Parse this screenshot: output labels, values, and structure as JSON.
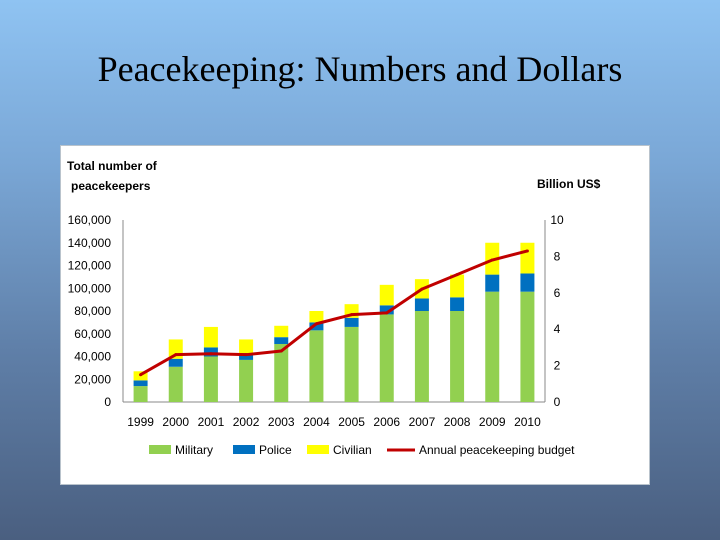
{
  "slide": {
    "title": "Peacekeeping: Numbers and Dollars"
  },
  "colors": {
    "military": "#92d050",
    "police": "#0070c0",
    "civilian": "#ffff00",
    "budget": "#c00000"
  },
  "chart_data": {
    "type": "bar",
    "stacked": true,
    "categories": [
      "1999",
      "2000",
      "2001",
      "2002",
      "2003",
      "2004",
      "2005",
      "2006",
      "2007",
      "2008",
      "2009",
      "2010"
    ],
    "series": [
      {
        "name": "Military",
        "values": [
          14000,
          31000,
          40000,
          37000,
          51000,
          63000,
          66000,
          77000,
          80000,
          80000,
          97000,
          97000
        ]
      },
      {
        "name": "Police",
        "values": [
          5000,
          7000,
          8000,
          6000,
          6000,
          7000,
          8000,
          8000,
          11000,
          12000,
          15000,
          16000
        ]
      },
      {
        "name": "Civilian",
        "values": [
          8000,
          17000,
          18000,
          12000,
          10000,
          10000,
          12000,
          18000,
          17000,
          20000,
          28000,
          27000
        ]
      }
    ],
    "line_series": {
      "name": "Annual peacekeeping budget",
      "axis": "right",
      "values": [
        1.5,
        2.6,
        2.65,
        2.6,
        2.8,
        4.3,
        4.8,
        4.9,
        6.2,
        7.0,
        7.8,
        8.3
      ]
    },
    "y_left": {
      "label": "Total number of peacekeepers",
      "label_lines": [
        "Total number of",
        "peacekeepers"
      ],
      "range": [
        0,
        160000
      ],
      "ticks": [
        "0",
        "20,000",
        "40,000",
        "60,000",
        "80,000",
        "100,000",
        "120,000",
        "140,000",
        "160,000"
      ]
    },
    "y_right": {
      "label": "Billion US$",
      "range": [
        0,
        10
      ],
      "ticks": [
        "0",
        "2",
        "4",
        "6",
        "8",
        "10"
      ]
    },
    "legend": {
      "position": "bottom",
      "entries": [
        "Military",
        "Police",
        "Civilian",
        "Annual peacekeeping budget"
      ]
    },
    "grid": false
  }
}
